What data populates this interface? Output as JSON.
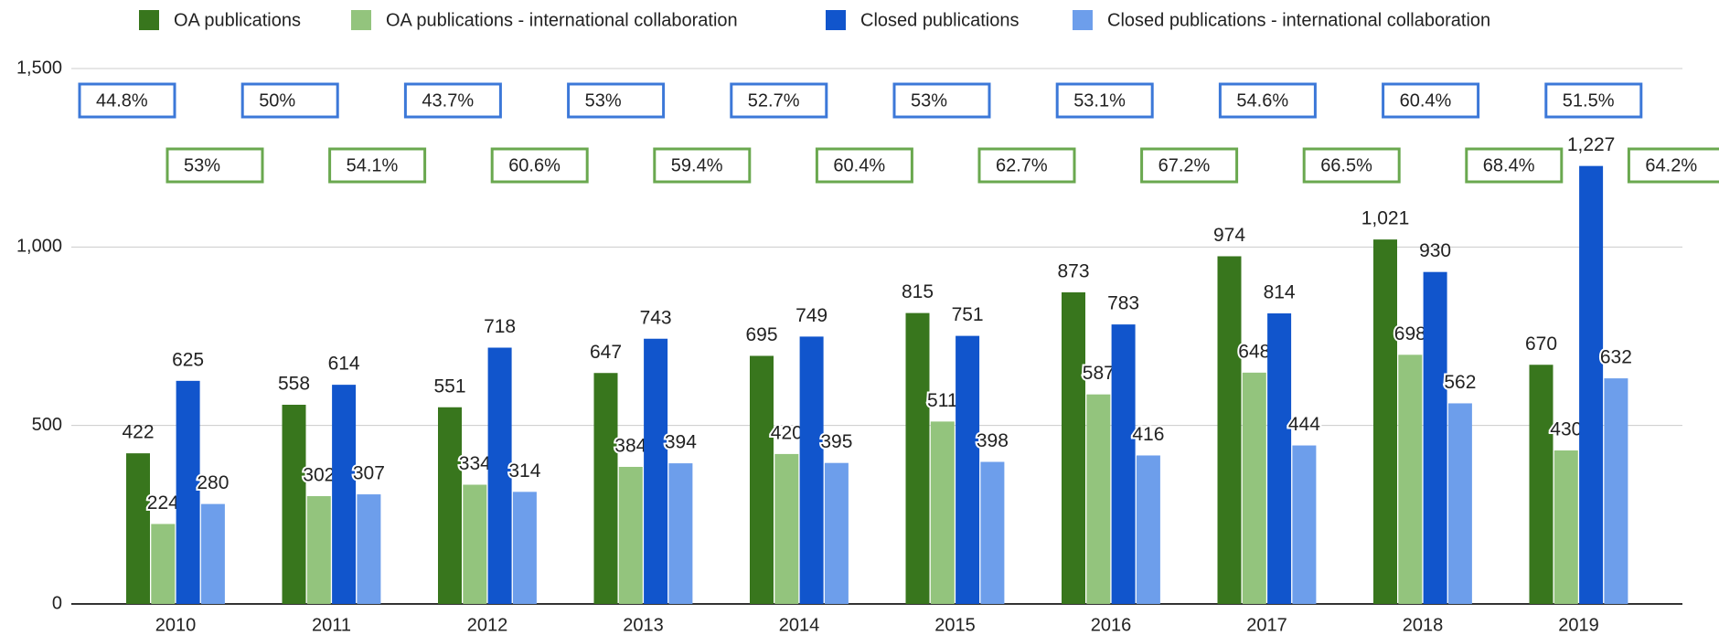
{
  "chart_data": {
    "type": "bar",
    "categories": [
      "2010",
      "2011",
      "2012",
      "2013",
      "2014",
      "2015",
      "2016",
      "2017",
      "2018",
      "2019"
    ],
    "series": [
      {
        "name": "OA publications",
        "color": "#38761d",
        "label_color": "#38761d",
        "values": [
          422,
          558,
          551,
          647,
          695,
          815,
          873,
          974,
          1021,
          670
        ],
        "value_labels": [
          "422",
          "558",
          "551",
          "647",
          "695",
          "815",
          "873",
          "974",
          "1,021",
          "670"
        ]
      },
      {
        "name": "OA publications - international collaboration",
        "color": "#93c47d",
        "label_color": "#93c47d",
        "values": [
          224,
          302,
          334,
          384,
          420,
          511,
          587,
          648,
          698,
          430
        ]
      },
      {
        "name": "Closed publications",
        "color": "#1155cc",
        "label_color": "#1155cc",
        "values": [
          625,
          614,
          718,
          743,
          749,
          751,
          783,
          814,
          930,
          1227
        ],
        "value_labels": [
          "625",
          "614",
          "718",
          "743",
          "749",
          "751",
          "783",
          "814",
          "930",
          "1,227"
        ]
      },
      {
        "name": "Closed publications - international collaboration",
        "color": "#6d9eeb",
        "label_color": "#6d9eeb",
        "values": [
          280,
          307,
          314,
          394,
          395,
          398,
          416,
          444,
          562,
          632
        ]
      }
    ],
    "annotations": {
      "closed_share": {
        "color": "#3c78d8",
        "labels": [
          "44.8%",
          "50%",
          "43.7%",
          "53%",
          "52.7%",
          "53%",
          "53.1%",
          "54.6%",
          "60.4%",
          "51.5%"
        ]
      },
      "oa_share": {
        "color": "#6aa84f",
        "labels": [
          "53%",
          "54.1%",
          "60.6%",
          "59.4%",
          "60.4%",
          "62.7%",
          "67.2%",
          "66.5%",
          "68.4%",
          "64.2%"
        ]
      }
    },
    "ylim": [
      0,
      1500
    ],
    "yticks": [
      {
        "value": 0,
        "label": "0"
      },
      {
        "value": 500,
        "label": "500"
      },
      {
        "value": 1000,
        "label": "1,000"
      },
      {
        "value": 1500,
        "label": "1,500"
      }
    ],
    "grid": true,
    "legend": "top"
  }
}
